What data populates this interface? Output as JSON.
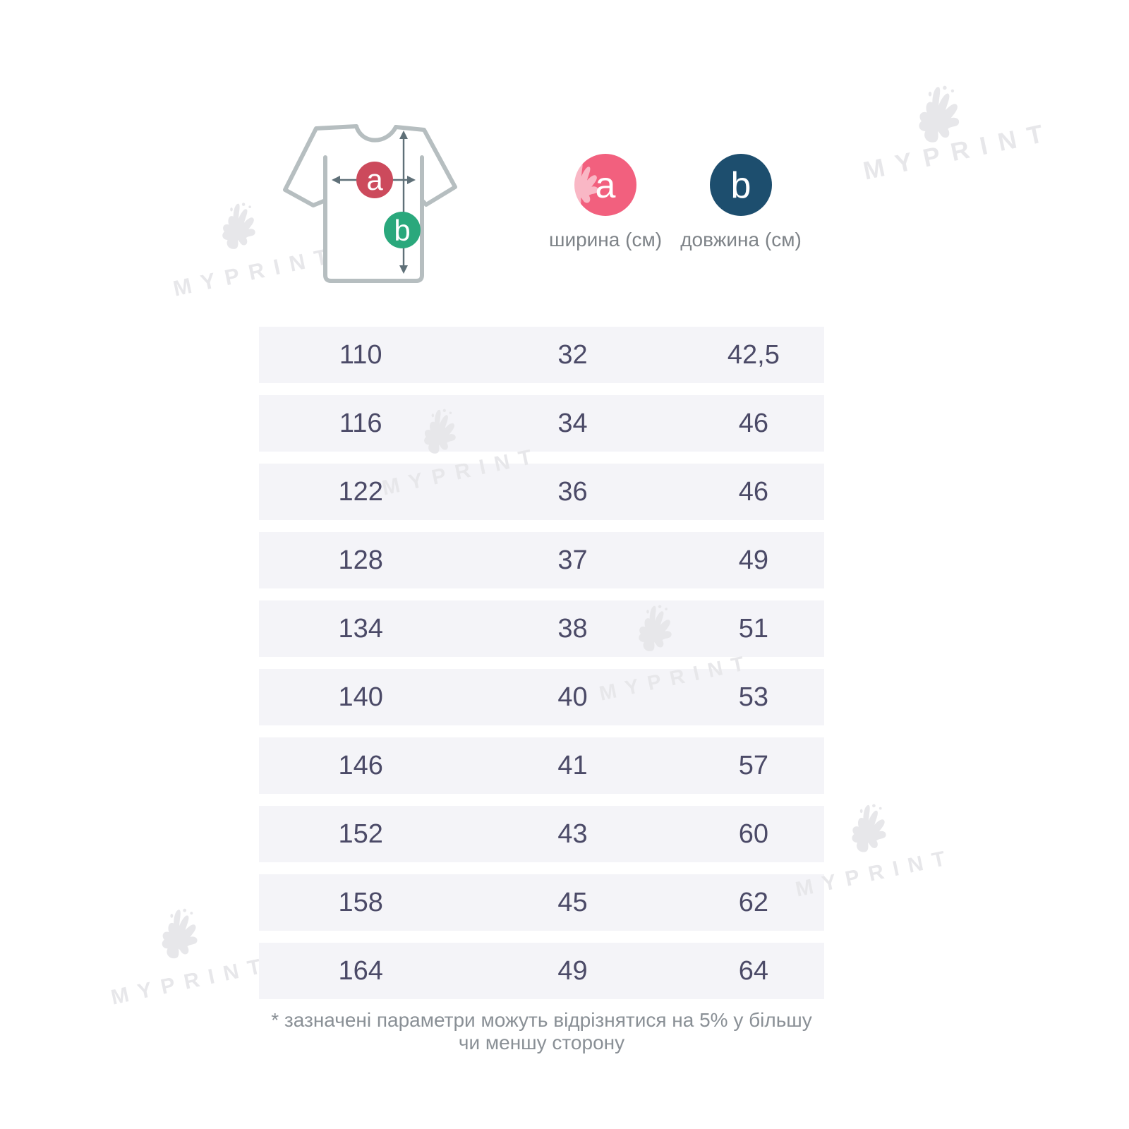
{
  "diagram": {
    "marker_a": "a",
    "marker_b": "b",
    "colors": {
      "marker_a": "#cc4a5c",
      "marker_b": "#2aa87c",
      "outline": "#b6bec0",
      "arrow": "#5f7078"
    }
  },
  "legend": {
    "items": [
      {
        "label": "a",
        "caption": "ширина (см)",
        "color": "#f2607e"
      },
      {
        "label": "b",
        "caption": "довжина (см)",
        "color": "#1d4e6e"
      }
    ]
  },
  "size_table": {
    "rows": [
      [
        "110",
        "32",
        "42,5"
      ],
      [
        "116",
        "34",
        "46"
      ],
      [
        "122",
        "36",
        "46"
      ],
      [
        "128",
        "37",
        "49"
      ],
      [
        "134",
        "38",
        "51"
      ],
      [
        "140",
        "40",
        "53"
      ],
      [
        "146",
        "41",
        "57"
      ],
      [
        "152",
        "43",
        "60"
      ],
      [
        "158",
        "45",
        "62"
      ],
      [
        "164",
        "49",
        "64"
      ]
    ],
    "row_bg": "#f4f4f8",
    "text_color": "#4b4a67"
  },
  "footnote": "* зазначені параметри можуть відрізнятися на 5% у більшу чи меншу сторону",
  "watermark": {
    "text": "MYPRINT",
    "icon": "paint-splash-icon",
    "color": "#e7e7ea"
  }
}
